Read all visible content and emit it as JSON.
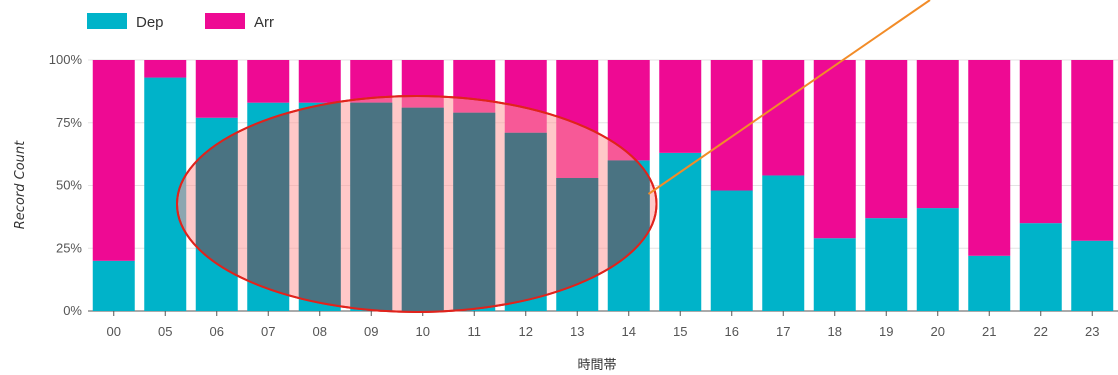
{
  "chart_data": {
    "type": "bar",
    "stacked": true,
    "percent": true,
    "categories": [
      "00",
      "05",
      "06",
      "07",
      "08",
      "09",
      "10",
      "11",
      "12",
      "13",
      "14",
      "15",
      "16",
      "17",
      "18",
      "19",
      "20",
      "21",
      "22",
      "23"
    ],
    "series": [
      {
        "name": "Dep",
        "color": "#00b3c9",
        "values": [
          20,
          93,
          77,
          83,
          83,
          83,
          81,
          79,
          71,
          53,
          60,
          63,
          48,
          54,
          29,
          37,
          41,
          22,
          35,
          28
        ]
      },
      {
        "name": "Arr",
        "color": "#ee0a93",
        "values": [
          80,
          7,
          23,
          17,
          17,
          17,
          19,
          21,
          29,
          47,
          40,
          37,
          52,
          46,
          71,
          63,
          59,
          78,
          65,
          72
        ]
      }
    ],
    "ylim": [
      0,
      100
    ],
    "yticks": [
      "0%",
      "25%",
      "50%",
      "75%",
      "100%"
    ],
    "ylabel": "Record Count",
    "xlabel": "時間帯",
    "legend": "top-left",
    "grid": true,
    "annotations": {
      "highlight_ellipse": {
        "covers": [
          "06",
          "07",
          "08",
          "09",
          "10",
          "11",
          "12",
          "13",
          "14"
        ],
        "stroke": "#e0231c",
        "fill": "#ff9a9a"
      },
      "pointer_line": {
        "color": "#f28c28"
      }
    }
  }
}
